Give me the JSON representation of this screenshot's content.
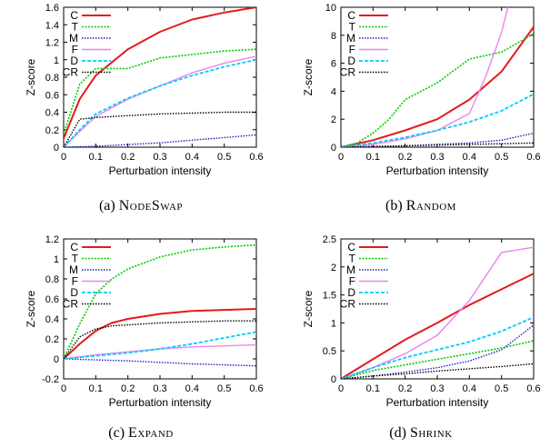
{
  "colors": {
    "C": "#e41a1c",
    "T": "#00cc00",
    "M": "#1c1cbf",
    "F": "#ee82ee",
    "D": "#00ccff",
    "CR": "#000000"
  },
  "chart_data": [
    {
      "type": "line",
      "caption_label": "(a)",
      "caption_name": "NodeSwap",
      "xlabel": "Perturbation intensity",
      "ylabel": "Z-score",
      "xlim": [
        0,
        0.6
      ],
      "ylim": [
        0,
        1.6
      ],
      "xticks": [
        "0",
        "0.1",
        "0.2",
        "0.3",
        "0.4",
        "0.5",
        "0.6"
      ],
      "yticks": [
        "0",
        "0.2",
        "0.4",
        "0.6",
        "0.8",
        "1",
        "1.2",
        "1.4",
        "1.6"
      ],
      "legend_position": "top-left",
      "grid": false,
      "series": [
        {
          "name": "C",
          "x": [
            0,
            0.05,
            0.1,
            0.2,
            0.3,
            0.4,
            0.5,
            0.6
          ],
          "y": [
            0.1,
            0.55,
            0.82,
            1.12,
            1.32,
            1.46,
            1.54,
            1.6
          ]
        },
        {
          "name": "T",
          "x": [
            0,
            0.05,
            0.1,
            0.2,
            0.3,
            0.4,
            0.5,
            0.6
          ],
          "y": [
            0.15,
            0.72,
            0.9,
            0.9,
            1.02,
            1.06,
            1.1,
            1.12
          ]
        },
        {
          "name": "M",
          "x": [
            0,
            0.1,
            0.2,
            0.3,
            0.4,
            0.5,
            0.6
          ],
          "y": [
            0.0,
            0.01,
            0.03,
            0.05,
            0.08,
            0.11,
            0.14
          ]
        },
        {
          "name": "F",
          "x": [
            0,
            0.05,
            0.1,
            0.2,
            0.3,
            0.4,
            0.5,
            0.6
          ],
          "y": [
            0.0,
            0.18,
            0.35,
            0.55,
            0.7,
            0.85,
            0.96,
            1.04
          ]
        },
        {
          "name": "D",
          "x": [
            0,
            0.05,
            0.1,
            0.2,
            0.3,
            0.4,
            0.5,
            0.6
          ],
          "y": [
            0.0,
            0.2,
            0.38,
            0.56,
            0.7,
            0.82,
            0.92,
            1.0
          ]
        },
        {
          "name": "CR",
          "x": [
            0,
            0.05,
            0.1,
            0.2,
            0.3,
            0.4,
            0.5,
            0.6
          ],
          "y": [
            0.0,
            0.32,
            0.34,
            0.36,
            0.38,
            0.39,
            0.4,
            0.4
          ]
        }
      ]
    },
    {
      "type": "line",
      "caption_label": "(b)",
      "caption_name": "Random",
      "xlabel": "Perturbation intensity",
      "ylabel": "Z-score",
      "xlim": [
        0,
        0.6
      ],
      "ylim": [
        0,
        10
      ],
      "xticks": [
        "0",
        "0.1",
        "0.2",
        "0.3",
        "0.4",
        "0.5",
        "0.6"
      ],
      "yticks": [
        "0",
        "2",
        "4",
        "6",
        "8",
        "10"
      ],
      "legend_position": "top-left",
      "grid": false,
      "series": [
        {
          "name": "C",
          "x": [
            0,
            0.1,
            0.2,
            0.3,
            0.4,
            0.5,
            0.6
          ],
          "y": [
            0.0,
            0.5,
            1.2,
            2.0,
            3.4,
            5.4,
            8.6
          ]
        },
        {
          "name": "T",
          "x": [
            0,
            0.05,
            0.1,
            0.15,
            0.2,
            0.3,
            0.4,
            0.5,
            0.6
          ],
          "y": [
            0.0,
            0.3,
            1.0,
            2.0,
            3.4,
            4.6,
            6.3,
            6.8,
            8.1
          ]
        },
        {
          "name": "M",
          "x": [
            0,
            0.1,
            0.2,
            0.3,
            0.4,
            0.5,
            0.6
          ],
          "y": [
            0.0,
            0.05,
            0.1,
            0.2,
            0.3,
            0.5,
            1.0
          ]
        },
        {
          "name": "F",
          "x": [
            0,
            0.1,
            0.2,
            0.3,
            0.4,
            0.45,
            0.5,
            0.52
          ],
          "y": [
            0.0,
            0.2,
            0.6,
            1.2,
            2.4,
            5.0,
            8.2,
            10.0
          ]
        },
        {
          "name": "D",
          "x": [
            0,
            0.1,
            0.2,
            0.3,
            0.4,
            0.5,
            0.6
          ],
          "y": [
            0.0,
            0.3,
            0.7,
            1.2,
            1.8,
            2.6,
            3.8
          ]
        },
        {
          "name": "CR",
          "x": [
            0,
            0.1,
            0.2,
            0.3,
            0.4,
            0.5,
            0.6
          ],
          "y": [
            0.0,
            0.05,
            0.1,
            0.15,
            0.2,
            0.25,
            0.3
          ]
        }
      ]
    },
    {
      "type": "line",
      "caption_label": "(c)",
      "caption_name": "Expand",
      "xlabel": "Perturbation intensity",
      "ylabel": "Z-score",
      "xlim": [
        0,
        0.6
      ],
      "ylim": [
        -0.2,
        1.2
      ],
      "xticks": [
        "0",
        "0.1",
        "0.2",
        "0.3",
        "0.4",
        "0.5",
        "0.6"
      ],
      "yticks": [
        "-0.2",
        "0",
        "0.2",
        "0.4",
        "0.6",
        "0.8",
        "1",
        "1.2"
      ],
      "legend_position": "top-left",
      "grid": false,
      "series": [
        {
          "name": "C",
          "x": [
            0,
            0.05,
            0.1,
            0.15,
            0.2,
            0.3,
            0.4,
            0.5,
            0.6
          ],
          "y": [
            0.0,
            0.15,
            0.28,
            0.36,
            0.4,
            0.45,
            0.48,
            0.49,
            0.5
          ]
        },
        {
          "name": "T",
          "x": [
            0,
            0.05,
            0.1,
            0.15,
            0.2,
            0.3,
            0.4,
            0.5,
            0.6
          ],
          "y": [
            0.0,
            0.35,
            0.65,
            0.8,
            0.9,
            1.02,
            1.09,
            1.12,
            1.14
          ]
        },
        {
          "name": "M",
          "x": [
            0,
            0.1,
            0.2,
            0.3,
            0.4,
            0.5,
            0.6
          ],
          "y": [
            0.0,
            -0.01,
            -0.02,
            -0.035,
            -0.05,
            -0.06,
            -0.07
          ]
        },
        {
          "name": "F",
          "x": [
            0,
            0.1,
            0.2,
            0.3,
            0.4,
            0.5,
            0.6
          ],
          "y": [
            0.0,
            0.04,
            0.07,
            0.1,
            0.12,
            0.13,
            0.14
          ]
        },
        {
          "name": "D",
          "x": [
            0,
            0.1,
            0.2,
            0.3,
            0.4,
            0.5,
            0.6
          ],
          "y": [
            0.0,
            0.03,
            0.06,
            0.1,
            0.15,
            0.21,
            0.27
          ]
        },
        {
          "name": "CR",
          "x": [
            0,
            0.05,
            0.1,
            0.15,
            0.2,
            0.3,
            0.4,
            0.5,
            0.6
          ],
          "y": [
            0.0,
            0.22,
            0.3,
            0.33,
            0.34,
            0.36,
            0.37,
            0.38,
            0.38
          ]
        }
      ]
    },
    {
      "type": "line",
      "caption_label": "(d)",
      "caption_name": "Shrink",
      "xlabel": "Perturbation intensity",
      "ylabel": "Z-score",
      "xlim": [
        0,
        0.6
      ],
      "ylim": [
        0,
        2.5
      ],
      "xticks": [
        "0",
        "0.1",
        "0.2",
        "0.3",
        "0.4",
        "0.5",
        "0.6"
      ],
      "yticks": [
        "0",
        "0.5",
        "1",
        "1.5",
        "2",
        "2.5"
      ],
      "legend_position": "top-left",
      "grid": false,
      "series": [
        {
          "name": "C",
          "x": [
            0,
            0.1,
            0.2,
            0.3,
            0.4,
            0.5,
            0.6
          ],
          "y": [
            0.0,
            0.35,
            0.7,
            1.0,
            1.32,
            1.6,
            1.88
          ]
        },
        {
          "name": "T",
          "x": [
            0,
            0.1,
            0.2,
            0.3,
            0.4,
            0.5,
            0.6
          ],
          "y": [
            0.0,
            0.15,
            0.25,
            0.35,
            0.45,
            0.55,
            0.68
          ]
        },
        {
          "name": "M",
          "x": [
            0,
            0.1,
            0.2,
            0.3,
            0.4,
            0.5,
            0.6
          ],
          "y": [
            0.0,
            0.05,
            0.12,
            0.2,
            0.32,
            0.52,
            0.96
          ]
        },
        {
          "name": "F",
          "x": [
            0,
            0.1,
            0.2,
            0.3,
            0.4,
            0.5,
            0.6
          ],
          "y": [
            0.0,
            0.2,
            0.45,
            0.78,
            1.4,
            2.26,
            2.35
          ]
        },
        {
          "name": "D",
          "x": [
            0,
            0.1,
            0.2,
            0.3,
            0.4,
            0.5,
            0.6
          ],
          "y": [
            0.0,
            0.2,
            0.38,
            0.52,
            0.66,
            0.85,
            1.1
          ]
        },
        {
          "name": "CR",
          "x": [
            0,
            0.1,
            0.2,
            0.3,
            0.4,
            0.5,
            0.6
          ],
          "y": [
            0.0,
            0.05,
            0.09,
            0.14,
            0.18,
            0.22,
            0.27
          ]
        }
      ]
    }
  ]
}
